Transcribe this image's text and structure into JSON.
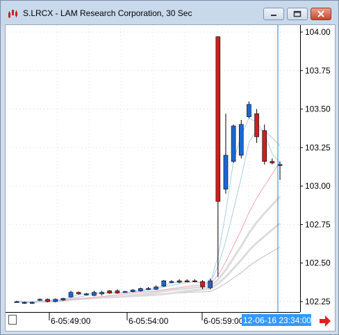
{
  "window": {
    "title": "S.LRCX - LAM Research Corporation, 30 Sec",
    "controls": {
      "minimize": "minimize",
      "maximize": "maximize",
      "close": "close"
    }
  },
  "colors": {
    "up_candle": "#1e66d0",
    "down_candle": "#cc1f1f",
    "crosshair": "#1e7fd8",
    "ma_blue": "#a9cdea",
    "ma_pink": "#f4a4b8",
    "ma_gray": "#dcdcdc",
    "ma_dark": "#bdbdbd",
    "time_highlight": "#3399ff",
    "nav_arrow": "#e02020"
  },
  "chart_data": {
    "type": "candlestick",
    "y_ticks": [
      "104.00",
      "103.75",
      "103.50",
      "103.25",
      "103.00",
      "102.75",
      "102.50",
      "102.25"
    ],
    "ylim": [
      102.2,
      104.04
    ],
    "x_ticks": [
      "6-05:49:00",
      "6-05:54:00",
      "6-05:59:00"
    ],
    "crosshair_time": "12-06-16 23:34:00",
    "candles": [
      {
        "o": 102.245,
        "h": 102.255,
        "l": 102.245,
        "c": 102.25
      },
      {
        "o": 102.24,
        "h": 102.25,
        "l": 102.235,
        "c": 102.245
      },
      {
        "o": 102.24,
        "h": 102.25,
        "l": 102.235,
        "c": 102.245
      },
      {
        "o": 102.26,
        "h": 102.27,
        "l": 102.255,
        "c": 102.265
      },
      {
        "o": 102.265,
        "h": 102.27,
        "l": 102.245,
        "c": 102.25
      },
      {
        "o": 102.25,
        "h": 102.27,
        "l": 102.245,
        "c": 102.265
      },
      {
        "o": 102.26,
        "h": 102.275,
        "l": 102.255,
        "c": 102.27
      },
      {
        "o": 102.28,
        "h": 102.32,
        "l": 102.275,
        "c": 102.31
      },
      {
        "o": 102.31,
        "h": 102.315,
        "l": 102.295,
        "c": 102.3
      },
      {
        "o": 102.295,
        "h": 102.305,
        "l": 102.29,
        "c": 102.3
      },
      {
        "o": 102.29,
        "h": 102.32,
        "l": 102.285,
        "c": 102.31
      },
      {
        "o": 102.3,
        "h": 102.32,
        "l": 102.29,
        "c": 102.31
      },
      {
        "o": 102.32,
        "h": 102.325,
        "l": 102.3,
        "c": 102.305
      },
      {
        "o": 102.32,
        "h": 102.33,
        "l": 102.3,
        "c": 102.305
      },
      {
        "o": 102.315,
        "h": 102.32,
        "l": 102.31,
        "c": 102.315
      },
      {
        "o": 102.315,
        "h": 102.33,
        "l": 102.31,
        "c": 102.325
      },
      {
        "o": 102.32,
        "h": 102.34,
        "l": 102.315,
        "c": 102.335
      },
      {
        "o": 102.335,
        "h": 102.345,
        "l": 102.325,
        "c": 102.335
      },
      {
        "o": 102.33,
        "h": 102.355,
        "l": 102.325,
        "c": 102.345
      },
      {
        "o": 102.35,
        "h": 102.39,
        "l": 102.345,
        "c": 102.385
      },
      {
        "o": 102.38,
        "h": 102.39,
        "l": 102.37,
        "c": 102.38
      },
      {
        "o": 102.385,
        "h": 102.395,
        "l": 102.37,
        "c": 102.375
      },
      {
        "o": 102.385,
        "h": 102.395,
        "l": 102.375,
        "c": 102.38
      },
      {
        "o": 102.385,
        "h": 102.395,
        "l": 102.375,
        "c": 102.38
      },
      {
        "o": 102.38,
        "h": 102.39,
        "l": 102.33,
        "c": 102.345
      },
      {
        "o": 102.34,
        "h": 102.4,
        "l": 102.33,
        "c": 102.385
      },
      {
        "o": 103.97,
        "h": 103.97,
        "l": 102.41,
        "c": 102.9
      },
      {
        "o": 102.98,
        "h": 103.47,
        "l": 102.95,
        "c": 103.2
      },
      {
        "o": 103.16,
        "h": 103.4,
        "l": 103.15,
        "c": 103.39
      },
      {
        "o": 103.2,
        "h": 103.43,
        "l": 103.18,
        "c": 103.4
      },
      {
        "o": 103.45,
        "h": 103.55,
        "l": 103.44,
        "c": 103.53
      },
      {
        "o": 103.47,
        "h": 103.5,
        "l": 103.28,
        "c": 103.32
      },
      {
        "o": 103.36,
        "h": 103.4,
        "l": 103.14,
        "c": 103.16
      },
      {
        "o": 103.16,
        "h": 103.18,
        "l": 103.14,
        "c": 103.15
      },
      {
        "o": 103.14,
        "h": 103.16,
        "l": 103.04,
        "c": 103.14
      }
    ]
  }
}
